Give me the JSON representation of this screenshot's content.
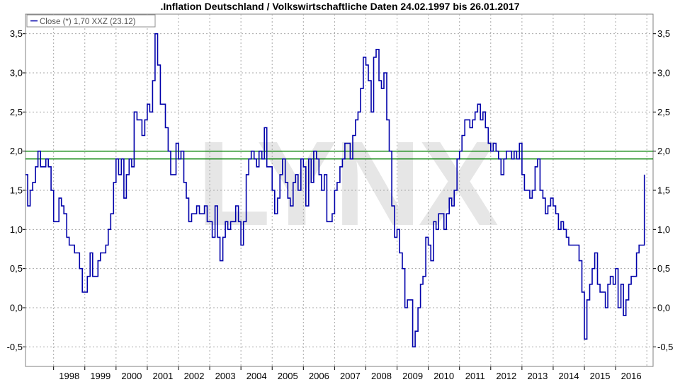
{
  "chart_data": {
    "type": "line",
    "title": ".Inflation Deutschland / Volkswirtschaftliche Daten 24.02.1997 bis 26.01.2017",
    "xlabel": "",
    "ylabel": "",
    "xlim": [
      1997.1,
      2017.2
    ],
    "ylim": [
      -0.75,
      3.75
    ],
    "y_ticks": [
      -0.5,
      0.0,
      0.5,
      1.0,
      1.5,
      2.0,
      2.5,
      3.0,
      3.5
    ],
    "y_tick_labels": [
      "-0,5",
      "0,0",
      "0,5",
      "1,0",
      "1,5",
      "2,0",
      "2,5",
      "3,0",
      "3,5"
    ],
    "x_tick_labels": [
      "1998",
      "1999",
      "2000",
      "2001",
      "2002",
      "2003",
      "2004",
      "2005",
      "2006",
      "2007",
      "2008",
      "2009",
      "2010",
      "2011",
      "2012",
      "2013",
      "2014",
      "2015",
      "2016"
    ],
    "grid": true,
    "legend": {
      "position": "top-left",
      "entries": [
        "Close (*) 1,70 XXZ (23.12)"
      ]
    },
    "watermark": "LYNX",
    "reference_lines": [
      {
        "value": 2.0,
        "color": "#008000"
      },
      {
        "value": 1.9,
        "color": "#008000"
      }
    ],
    "series": [
      {
        "name": "Close (*) 1,70 XXZ (23.12)",
        "color": "#0000aa",
        "x": [
          1997.1,
          1997.17,
          1997.25,
          1997.33,
          1997.42,
          1997.5,
          1997.58,
          1997.67,
          1997.75,
          1997.83,
          1997.92,
          1998.0,
          1998.08,
          1998.17,
          1998.25,
          1998.33,
          1998.42,
          1998.5,
          1998.58,
          1998.67,
          1998.75,
          1998.83,
          1998.92,
          1999.0,
          1999.08,
          1999.17,
          1999.25,
          1999.33,
          1999.42,
          1999.5,
          1999.58,
          1999.67,
          1999.75,
          1999.83,
          1999.92,
          2000.0,
          2000.08,
          2000.17,
          2000.25,
          2000.33,
          2000.42,
          2000.5,
          2000.58,
          2000.67,
          2000.75,
          2000.83,
          2000.92,
          2001.0,
          2001.08,
          2001.17,
          2001.25,
          2001.33,
          2001.42,
          2001.5,
          2001.58,
          2001.67,
          2001.75,
          2001.83,
          2001.92,
          2002.0,
          2002.08,
          2002.17,
          2002.25,
          2002.33,
          2002.42,
          2002.5,
          2002.58,
          2002.67,
          2002.75,
          2002.83,
          2002.92,
          2003.0,
          2003.08,
          2003.17,
          2003.25,
          2003.33,
          2003.42,
          2003.5,
          2003.58,
          2003.67,
          2003.75,
          2003.83,
          2003.92,
          2004.0,
          2004.08,
          2004.17,
          2004.25,
          2004.33,
          2004.42,
          2004.5,
          2004.58,
          2004.67,
          2004.75,
          2004.83,
          2004.92,
          2005.0,
          2005.08,
          2005.17,
          2005.25,
          2005.33,
          2005.42,
          2005.5,
          2005.58,
          2005.67,
          2005.75,
          2005.83,
          2005.92,
          2006.0,
          2006.08,
          2006.17,
          2006.25,
          2006.33,
          2006.42,
          2006.5,
          2006.58,
          2006.67,
          2006.75,
          2006.83,
          2006.92,
          2007.0,
          2007.08,
          2007.17,
          2007.25,
          2007.33,
          2007.42,
          2007.5,
          2007.58,
          2007.67,
          2007.75,
          2007.83,
          2007.92,
          2008.0,
          2008.08,
          2008.17,
          2008.25,
          2008.33,
          2008.42,
          2008.5,
          2008.58,
          2008.67,
          2008.75,
          2008.83,
          2008.92,
          2009.0,
          2009.08,
          2009.17,
          2009.25,
          2009.33,
          2009.42,
          2009.5,
          2009.58,
          2009.67,
          2009.75,
          2009.83,
          2009.92,
          2010.0,
          2010.08,
          2010.17,
          2010.25,
          2010.33,
          2010.42,
          2010.5,
          2010.58,
          2010.67,
          2010.75,
          2010.83,
          2010.92,
          2011.0,
          2011.08,
          2011.17,
          2011.25,
          2011.33,
          2011.42,
          2011.5,
          2011.58,
          2011.67,
          2011.75,
          2011.83,
          2011.92,
          2012.0,
          2012.08,
          2012.17,
          2012.25,
          2012.33,
          2012.42,
          2012.5,
          2012.58,
          2012.67,
          2012.75,
          2012.83,
          2012.92,
          2013.0,
          2013.08,
          2013.17,
          2013.25,
          2013.33,
          2013.42,
          2013.5,
          2013.58,
          2013.67,
          2013.75,
          2013.83,
          2013.92,
          2014.0,
          2014.08,
          2014.17,
          2014.25,
          2014.33,
          2014.42,
          2014.5,
          2014.58,
          2014.67,
          2014.75,
          2014.83,
          2014.92,
          2015.0,
          2015.08,
          2015.17,
          2015.25,
          2015.33,
          2015.42,
          2015.5,
          2015.58,
          2015.67,
          2015.75,
          2015.83,
          2015.92,
          2016.0,
          2016.08,
          2016.17,
          2016.25,
          2016.33,
          2016.42,
          2016.5,
          2016.58,
          2016.67,
          2016.75,
          2016.83,
          2016.92
        ],
        "values": [
          1.7,
          1.3,
          1.5,
          1.6,
          1.8,
          2.0,
          1.8,
          1.8,
          1.9,
          1.8,
          1.5,
          1.1,
          1.1,
          1.4,
          1.3,
          1.2,
          0.9,
          0.8,
          0.8,
          0.7,
          0.7,
          0.5,
          0.2,
          0.2,
          0.4,
          0.7,
          0.4,
          0.4,
          0.6,
          0.7,
          0.7,
          0.8,
          1.0,
          1.2,
          1.6,
          1.9,
          1.7,
          1.9,
          1.4,
          1.7,
          1.9,
          1.8,
          2.5,
          2.4,
          2.4,
          2.2,
          2.4,
          2.6,
          2.5,
          2.9,
          3.5,
          3.1,
          2.6,
          2.6,
          2.3,
          2.0,
          1.7,
          1.7,
          2.1,
          1.9,
          2.0,
          1.6,
          1.4,
          1.1,
          1.2,
          1.2,
          1.3,
          1.2,
          1.2,
          1.3,
          1.1,
          1.1,
          0.9,
          1.3,
          0.9,
          0.6,
          0.9,
          1.1,
          1.0,
          1.1,
          1.1,
          1.3,
          1.1,
          0.8,
          1.1,
          1.7,
          1.9,
          2.0,
          1.9,
          1.8,
          2.0,
          1.9,
          2.3,
          1.8,
          1.8,
          1.5,
          1.2,
          1.4,
          1.7,
          1.9,
          1.6,
          1.4,
          1.3,
          1.6,
          1.7,
          1.5,
          1.9,
          1.8,
          1.3,
          1.9,
          1.6,
          2.0,
          1.9,
          1.7,
          1.5,
          1.7,
          1.1,
          1.1,
          1.2,
          1.5,
          1.6,
          1.8,
          1.9,
          2.1,
          2.1,
          1.9,
          2.2,
          2.4,
          2.5,
          2.8,
          3.2,
          3.1,
          2.9,
          2.5,
          3.2,
          3.3,
          2.9,
          2.8,
          3.0,
          2.4,
          2.0,
          1.3,
          0.9,
          1.0,
          0.7,
          0.5,
          0.0,
          0.1,
          0.1,
          -0.5,
          -0.3,
          0.0,
          0.3,
          0.4,
          0.9,
          0.8,
          0.6,
          1.1,
          1.0,
          1.2,
          1.2,
          1.0,
          1.2,
          1.4,
          1.3,
          1.5,
          1.9,
          2.0,
          2.2,
          2.4,
          2.4,
          2.3,
          2.4,
          2.5,
          2.6,
          2.4,
          2.5,
          2.3,
          2.1,
          2.0,
          2.1,
          2.0,
          1.9,
          1.7,
          1.9,
          2.0,
          2.0,
          1.9,
          2.0,
          1.9,
          2.1,
          1.7,
          1.5,
          1.5,
          1.4,
          1.5,
          1.8,
          1.9,
          1.5,
          1.4,
          1.2,
          1.3,
          1.4,
          1.3,
          1.2,
          1.0,
          1.1,
          1.0,
          0.9,
          0.8,
          0.8,
          0.8,
          0.8,
          0.6,
          0.2,
          -0.4,
          0.1,
          0.3,
          0.5,
          0.7,
          0.3,
          0.2,
          0.2,
          0.0,
          0.3,
          0.4,
          0.3,
          0.5,
          0.0,
          0.3,
          -0.1,
          0.1,
          0.3,
          0.4,
          0.4,
          0.7,
          0.8,
          0.8,
          1.7
        ]
      }
    ]
  }
}
